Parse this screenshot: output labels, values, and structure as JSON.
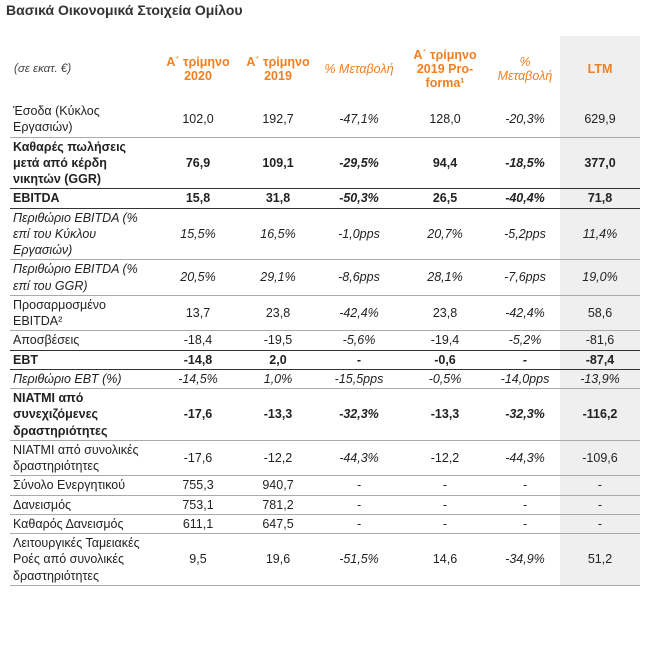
{
  "title": "Βασικά Οικονομικά Στοιχεία Ομίλου",
  "table": {
    "header": [
      "(σε εκατ. €)",
      "Α΄ τρίμηνο 2020",
      "Α΄ τρίμηνο 2019",
      "% Μεταβολή",
      "Α΄ τρίμηνο 2019 Pro-forma¹",
      "% Μεταβολή",
      "LTM"
    ],
    "rows": [
      [
        "Έσοδα (Κύκλος Εργασιών)",
        "102,0",
        "192,7",
        "-47,1%",
        "128,0",
        "-20,3%",
        "629,9"
      ],
      [
        "Καθαρές πωλήσεις μετά από κέρδη νικητών (GGR)",
        "76,9",
        "109,1",
        "-29,5%",
        "94,4",
        "-18,5%",
        "377,0"
      ],
      [
        "EBITDA",
        "15,8",
        "31,8",
        "-50,3%",
        "26,5",
        "-40,4%",
        "71,8"
      ],
      [
        "Περιθώριο EBITDA (% επί του Κύκλου Εργασιών)",
        "15,5%",
        "16,5%",
        "-1,0pps",
        "20,7%",
        "-5,2pps",
        "11,4%"
      ],
      [
        "Περιθώριο EBITDA (% επί του GGR)",
        "20,5%",
        "29,1%",
        "-8,6pps",
        "28,1%",
        "-7,6pps",
        "19,0%"
      ],
      [
        "Προσαρμοσμένο EBITDA²",
        "13,7",
        "23,8",
        "-42,4%",
        "23,8",
        "-42,4%",
        "58,6"
      ],
      [
        "Αποσβέσεις",
        "-18,4",
        "-19,5",
        "-5,6%",
        "-19,4",
        "-5,2%",
        "-81,6"
      ],
      [
        "EBT",
        "-14,8",
        "2,0",
        "-",
        "-0,6",
        "-",
        "-87,4"
      ],
      [
        "Περιθώριο EBT (%)",
        "-14,5%",
        "1,0%",
        "-15,5pps",
        "-0,5%",
        "-14,0pps",
        "-13,9%"
      ],
      [
        "ΝΙΑΤΜΙ από συνεχιζόμενες δραστηριότητες",
        "-17,6",
        "-13,3",
        "-32,3%",
        "-13,3",
        "-32,3%",
        "-116,2"
      ],
      [
        "ΝΙΑΤΜΙ από συνολικές δραστηριότητες",
        "-17,6",
        "-12,2",
        "-44,3%",
        "-12,2",
        "-44,3%",
        "-109,6"
      ],
      [
        "Σύνολο Ενεργητικού",
        "755,3",
        "940,7",
        "-",
        "-",
        "-",
        "-"
      ],
      [
        "Δανεισμός",
        "753,1",
        "781,2",
        "-",
        "-",
        "-",
        "-"
      ],
      [
        "Καθαρός Δανεισμός",
        "611,1",
        "647,5",
        "-",
        "-",
        "-",
        "-"
      ],
      [
        "Λειτουργικές Ταμειακές Ροές από συνολικές δραστηριότητες",
        "9,5",
        "19,6",
        "-51,5%",
        "14,6",
        "-34,9%",
        "51,2"
      ]
    ]
  }
}
